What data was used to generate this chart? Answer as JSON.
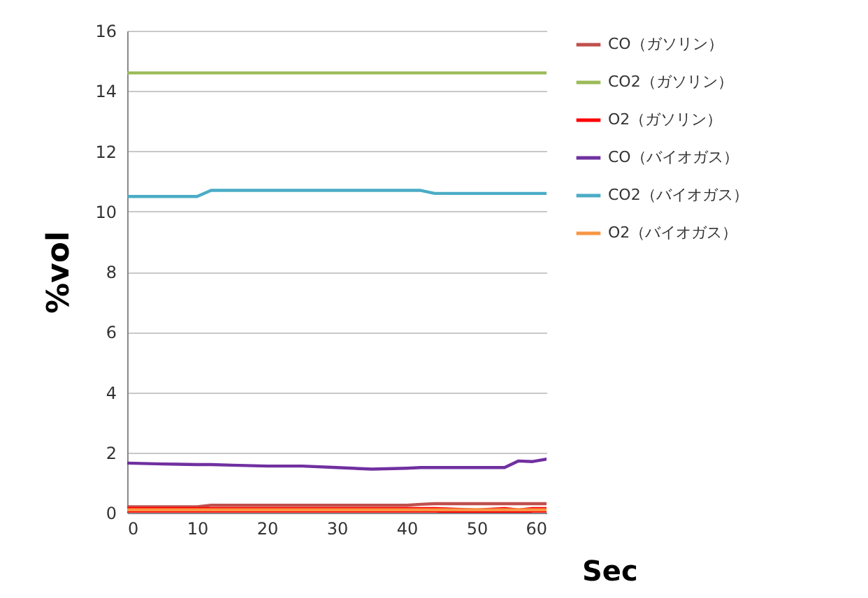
{
  "chart_data": {
    "type": "line",
    "xlabel": "Sec",
    "ylabel": "%vol",
    "x": [
      0,
      5,
      10,
      12,
      15,
      20,
      25,
      30,
      35,
      40,
      42,
      44,
      50,
      54,
      56,
      58,
      60
    ],
    "series": [
      {
        "name": "CO（ガソリン）",
        "color": "#c0504d",
        "values": [
          0.2,
          0.2,
          0.2,
          0.25,
          0.25,
          0.25,
          0.25,
          0.25,
          0.25,
          0.25,
          0.28,
          0.3,
          0.3,
          0.3,
          0.3,
          0.3,
          0.3
        ]
      },
      {
        "name": "CO2（ガソリン）",
        "color": "#9bbb59",
        "values": [
          14.6,
          14.6,
          14.6,
          14.6,
          14.6,
          14.6,
          14.6,
          14.6,
          14.6,
          14.6,
          14.6,
          14.6,
          14.6,
          14.6,
          14.6,
          14.6,
          14.6
        ]
      },
      {
        "name": "O2（ガソリン）",
        "color": "#ff0000",
        "values": [
          0.1,
          0.1,
          0.1,
          0.1,
          0.1,
          0.1,
          0.1,
          0.1,
          0.1,
          0.1,
          0.1,
          0.1,
          0.05,
          0.1,
          0.05,
          0.1,
          0.1
        ]
      },
      {
        "name": "CO（バイオガス）",
        "color": "#7030a0",
        "values": [
          1.65,
          1.62,
          1.6,
          1.6,
          1.58,
          1.55,
          1.55,
          1.5,
          1.45,
          1.48,
          1.5,
          1.5,
          1.5,
          1.5,
          1.72,
          1.7,
          1.78
        ]
      },
      {
        "name": "CO2（バイオガス）",
        "color": "#4bacc6",
        "values": [
          10.5,
          10.5,
          10.5,
          10.7,
          10.7,
          10.7,
          10.7,
          10.7,
          10.7,
          10.7,
          10.7,
          10.6,
          10.6,
          10.6,
          10.6,
          10.6,
          10.6
        ]
      },
      {
        "name": "O2（バイオガス）",
        "color": "#f79646",
        "values": [
          0.1,
          0.1,
          0.1,
          0.1,
          0.1,
          0.1,
          0.1,
          0.1,
          0.1,
          0.1,
          0.1,
          0.1,
          0.1,
          0.1,
          0.1,
          0.1,
          0.1
        ]
      }
    ],
    "xlim": [
      0,
      60
    ],
    "xticks": [
      0,
      10,
      20,
      30,
      40,
      50,
      60
    ],
    "ylim": [
      0,
      16
    ],
    "yticks": [
      0,
      2,
      4,
      6,
      8,
      10,
      12,
      14,
      16
    ],
    "grid": "y",
    "legend": "right",
    "marker": "none",
    "line_style": "solid"
  }
}
